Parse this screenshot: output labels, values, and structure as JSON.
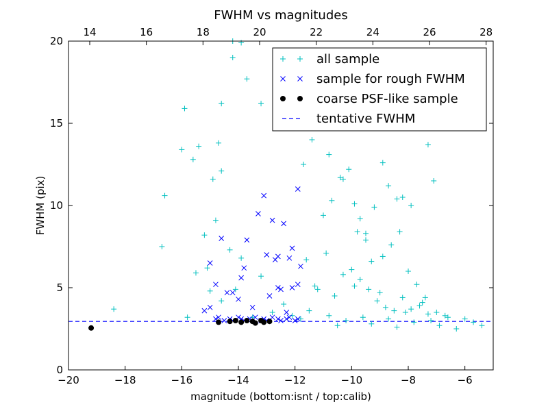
{
  "chart_data": {
    "type": "scatter",
    "title": "FWHM vs magnitudes",
    "xlabel": "magnitude (bottom:isnt / top:calib)",
    "ylabel": "FWHM (pix)",
    "xlim": [
      -20,
      -5
    ],
    "ylim": [
      0,
      20
    ],
    "top_xlim": [
      13.25,
      28.25
    ],
    "x_ticks": [
      "−20",
      "−18",
      "−16",
      "−14",
      "−12",
      "−10",
      "−8",
      "−6"
    ],
    "x_tick_values": [
      -20,
      -18,
      -16,
      -14,
      -12,
      -10,
      -8,
      -6
    ],
    "y_ticks": [
      "0",
      "5",
      "10",
      "15",
      "20"
    ],
    "y_tick_values": [
      0,
      5,
      10,
      15,
      20
    ],
    "top_ticks": [
      "14",
      "16",
      "18",
      "20",
      "22",
      "24",
      "26",
      "28"
    ],
    "top_tick_values": [
      14,
      16,
      18,
      20,
      22,
      24,
      26,
      28
    ],
    "grid": false,
    "legend_position": "top-right",
    "tentative_fwhm": 2.95,
    "series": [
      {
        "name": "all sample",
        "marker": "plus",
        "color": "#00BFBF",
        "x": [
          -18.4,
          -16.7,
          -16.6,
          -15.8,
          -15.5,
          -15.2,
          -15.1,
          -15.0,
          -14.9,
          -14.8,
          -14.6,
          -14.3,
          -14.1,
          -13.9,
          -13.5,
          -13.2,
          -12.8,
          -12.4,
          -12.1,
          -11.8,
          -11.5,
          -11.2,
          -10.8,
          -10.5,
          -10.2,
          -9.9,
          -9.6,
          -9.3,
          -9.0,
          -8.7,
          -8.4,
          -8.1,
          -7.8,
          -7.5,
          -7.2,
          -6.9,
          -6.6,
          -6.3,
          -6.0,
          -5.7,
          -5.4,
          -16.0,
          -15.6,
          -14.7,
          -14.6,
          -14.2,
          -13.9,
          -11.4,
          -11.0,
          -10.7,
          -10.4,
          -10.1,
          -9.8,
          -9.5,
          -9.2,
          -8.9,
          -8.6,
          -8.3,
          -8.0,
          -7.7,
          -7.4,
          -7.1,
          -11.6,
          -11.3,
          -10.9,
          -10.6,
          -10.3,
          -10.0,
          -9.7,
          -9.4,
          -9.1,
          -8.8,
          -8.5,
          -8.2,
          -7.9,
          -7.6,
          -7.3,
          -7.0,
          -6.7,
          -14.2,
          -13.2,
          -13.7,
          -15.9,
          -15.4,
          -14.6,
          -11.7,
          -10.8,
          -10.3,
          -9.9,
          -9.7,
          -9.5,
          -9.3,
          -8.9,
          -8.7,
          -8.4,
          -8.2,
          -7.9,
          -7.3
        ],
        "y": [
          3.7,
          7.5,
          10.6,
          3.2,
          5.9,
          8.2,
          6.2,
          4.8,
          11.6,
          9.1,
          4.2,
          7.3,
          4.9,
          6.8,
          3.2,
          5.7,
          3.5,
          4.0,
          3.3,
          3.1,
          3.6,
          4.9,
          3.3,
          2.7,
          3.0,
          5.1,
          3.2,
          2.8,
          4.7,
          3.1,
          2.6,
          3.5,
          2.9,
          4.1,
          3.0,
          2.7,
          3.2,
          2.5,
          3.1,
          2.9,
          2.7,
          13.4,
          12.8,
          13.8,
          16.2,
          19.0,
          19.9,
          14.0,
          9.4,
          10.3,
          11.7,
          12.2,
          8.4,
          7.9,
          9.9,
          6.9,
          7.6,
          8.4,
          6.0,
          5.2,
          4.4,
          11.5,
          6.7,
          5.1,
          7.1,
          4.5,
          5.8,
          6.1,
          5.5,
          4.9,
          4.2,
          3.8,
          3.6,
          4.4,
          3.7,
          3.9,
          3.4,
          3.5,
          3.3,
          20.0,
          16.2,
          17.7,
          15.9,
          13.6,
          12.1,
          12.5,
          13.1,
          11.6,
          10.1,
          9.2,
          8.3,
          6.6,
          12.6,
          11.2,
          10.4,
          10.5,
          10.0,
          13.7
        ]
      },
      {
        "name": "sample for rough FWHM",
        "marker": "x",
        "color": "#0000FF",
        "x": [
          -15.2,
          -15.0,
          -14.8,
          -14.7,
          -14.5,
          -14.3,
          -14.2,
          -14.0,
          -13.9,
          -13.8,
          -13.6,
          -13.4,
          -13.2,
          -13.1,
          -13.0,
          -12.8,
          -12.6,
          -12.5,
          -12.3,
          -12.2,
          -12.0,
          -11.9,
          -12.6,
          -12.4,
          -13.1,
          -13.3,
          -13.0,
          -12.8,
          -12.6,
          -12.1,
          -11.9,
          -12.2,
          -13.8,
          -14.6,
          -14.2,
          -13.9,
          -12.9,
          -12.7,
          -11.9,
          -14.8,
          -14.0,
          -13.5,
          -12.1,
          -12.5,
          -11.8,
          -15.0,
          -14.4,
          -13.7,
          -12.3
        ],
        "y": [
          3.6,
          3.8,
          3.1,
          3.2,
          3.0,
          3.1,
          3.0,
          3.2,
          3.1,
          3.0,
          3.1,
          3.2,
          3.0,
          3.1,
          3.0,
          3.2,
          3.1,
          3.0,
          3.1,
          3.2,
          3.0,
          3.1,
          6.9,
          8.9,
          10.6,
          9.5,
          7.0,
          9.1,
          5.0,
          7.4,
          11.0,
          6.8,
          6.2,
          8.0,
          4.7,
          5.6,
          4.5,
          6.7,
          5.2,
          5.2,
          4.3,
          3.8,
          5.0,
          4.9,
          6.3,
          6.5,
          4.7,
          7.9,
          3.5
        ]
      },
      {
        "name": "coarse PSF-like sample",
        "marker": "dot",
        "color": "#000000",
        "x": [
          -19.2,
          -14.7,
          -14.3,
          -14.1,
          -13.9,
          -13.7,
          -13.5,
          -13.4,
          -13.2,
          -13.1,
          -12.9
        ],
        "y": [
          2.55,
          2.9,
          2.95,
          3.0,
          2.9,
          3.0,
          2.95,
          2.85,
          3.0,
          2.9,
          2.95
        ]
      },
      {
        "name": "tentative FWHM",
        "marker": "dashed-line",
        "color": "#0000FF"
      }
    ]
  }
}
